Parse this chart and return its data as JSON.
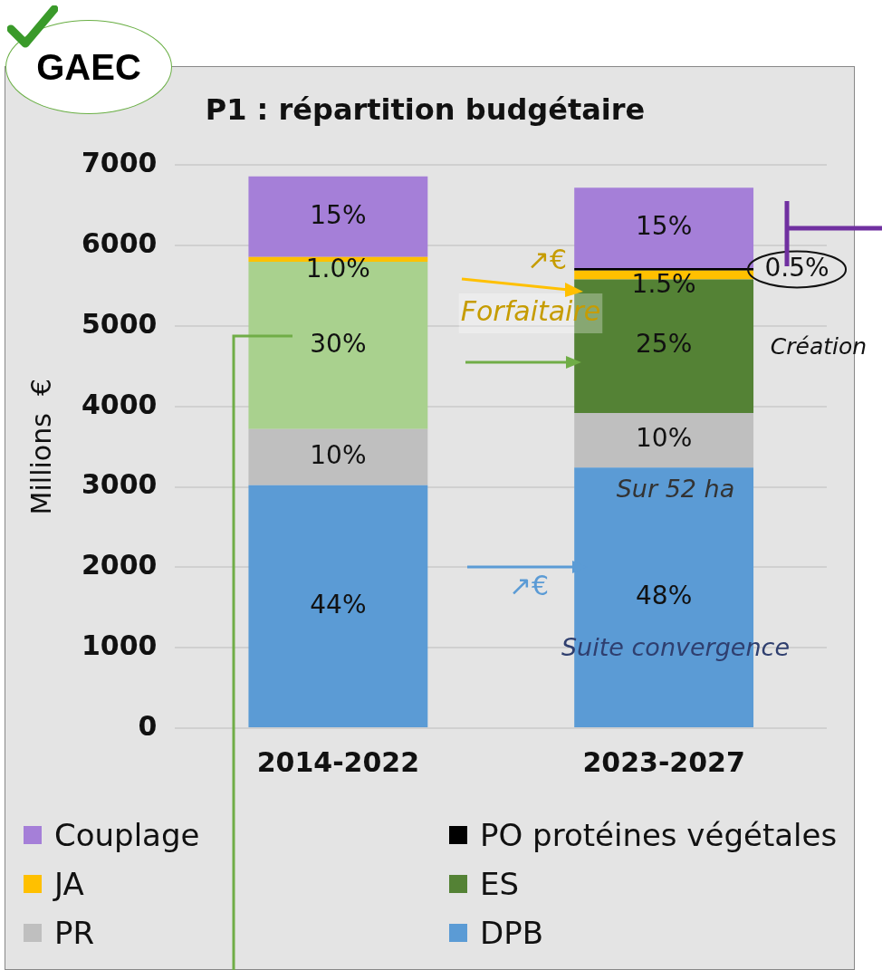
{
  "chart_data": {
    "type": "bar",
    "stacked": true,
    "title": "P1 : répartition budgétaire",
    "ylabel": "Millions  €",
    "categories": [
      "2014-2022",
      "2023-2027"
    ],
    "ylim": [
      0,
      7000
    ],
    "yticks": [
      0,
      1000,
      2000,
      3000,
      4000,
      5000,
      6000,
      7000
    ],
    "grid": "y",
    "legend": "bottom",
    "series": [
      {
        "name": "DPB",
        "color": "#5b9bd5",
        "values": [
          3020,
          3240
        ]
      },
      {
        "name": "PR",
        "color": "#bfbfbf",
        "values": [
          700,
          680
        ]
      },
      {
        "color": "#a9d18e",
        "values": [
          2080,
          null
        ]
      },
      {
        "name": "ES",
        "color": "#548235",
        "values": [
          null,
          1660
        ]
      },
      {
        "name": "JA",
        "color": "#ffc000",
        "values": [
          60,
          110
        ]
      },
      {
        "name": "PO protéines végétales",
        "color": "#000000",
        "values": [
          null,
          30
        ]
      },
      {
        "name": "Couplage",
        "color": "#a57fd8",
        "values": [
          1000,
          1000
        ]
      }
    ],
    "annotations": [
      "GAEC",
      "↗€",
      "Forfaitaire",
      "Création",
      "Sur 52 ha",
      "↗€",
      "Suite convergence",
      "44%",
      "48%",
      "10%",
      "10%",
      "30%",
      "25%",
      "1.0%",
      "1.5%",
      "0.5%",
      "15%",
      "15%"
    ]
  }
}
